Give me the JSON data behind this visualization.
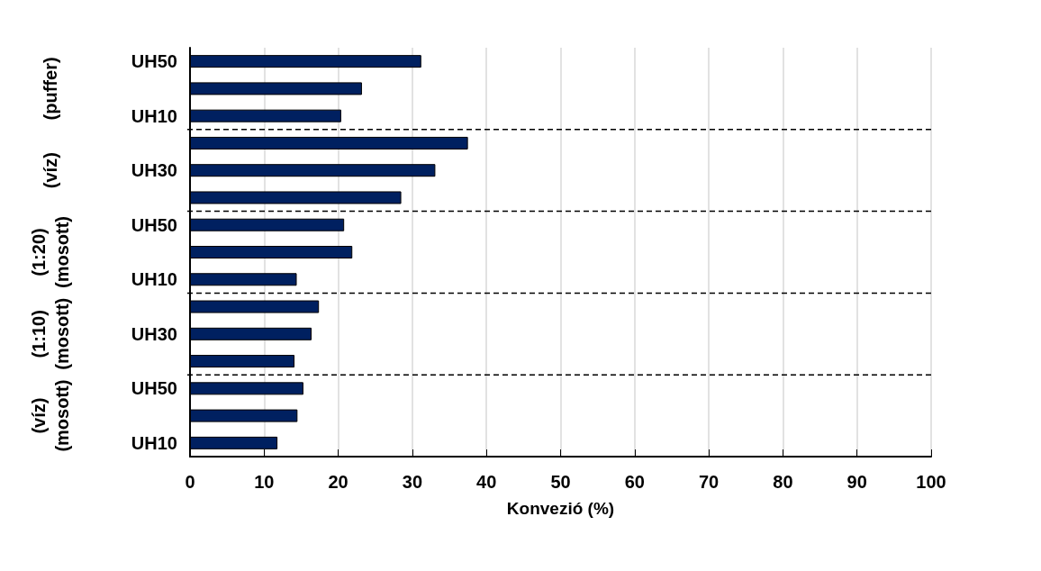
{
  "chart_data": {
    "type": "bar",
    "orientation": "horizontal",
    "xlabel": "Konvezió (%)",
    "categories": [
      "UH50",
      null,
      "UH10",
      null,
      "UH30",
      null,
      "UH50",
      null,
      "UH10",
      null,
      "UH30",
      null,
      "UH50",
      null,
      "UH10"
    ],
    "values": [
      31.2,
      23.2,
      20.4,
      37.5,
      33.1,
      28.5,
      20.8,
      21.9,
      14.4,
      17.4,
      16.4,
      14.1,
      15.3,
      14.5,
      11.8
    ],
    "color": "#002060",
    "xlim": [
      0,
      100
    ],
    "xticks": [
      0,
      10,
      20,
      30,
      40,
      50,
      60,
      70,
      80,
      90,
      100
    ],
    "grid": "x",
    "annotations": [
      "(puffer)",
      "(víz)",
      "(1:20)\n(mosott)",
      "(1:10)\n(mosott)",
      "(víz)\n(mosott)"
    ]
  }
}
